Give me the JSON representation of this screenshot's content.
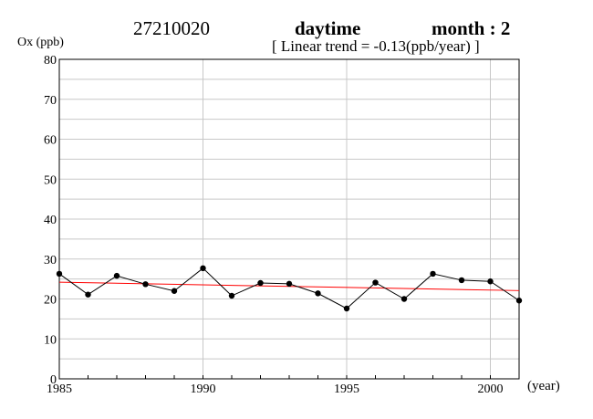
{
  "header": {
    "station": "27210020",
    "period": "daytime",
    "month_label": "month : 2",
    "trend_text": "[ Linear trend = -0.13(ppb/year) ]"
  },
  "chart_data": {
    "type": "line",
    "ylabel": "Ox (ppb)",
    "xlabel": "(year)",
    "xlim": [
      1985,
      2001
    ],
    "ylim": [
      0,
      80
    ],
    "x_ticks": [
      1985,
      1990,
      1995,
      2000
    ],
    "y_ticks": [
      0,
      10,
      20,
      30,
      40,
      50,
      60,
      70,
      80
    ],
    "grid": true,
    "series": [
      {
        "x": [
          1985,
          1986,
          1987,
          1988,
          1989,
          1990,
          1991,
          1992,
          1993,
          1994,
          1995,
          1996,
          1997,
          1998,
          1999,
          2000,
          2001
        ],
        "values": [
          26.3,
          21.1,
          25.8,
          23.7,
          22.0,
          27.7,
          20.8,
          24.0,
          23.8,
          21.4,
          17.6,
          24.1,
          20.0,
          26.3,
          24.7,
          24.4,
          19.6
        ],
        "color": "#000000"
      }
    ],
    "trend_line": {
      "x": [
        1985,
        2001
      ],
      "y": [
        24.2,
        22.1
      ],
      "color": "#ff0000"
    }
  }
}
